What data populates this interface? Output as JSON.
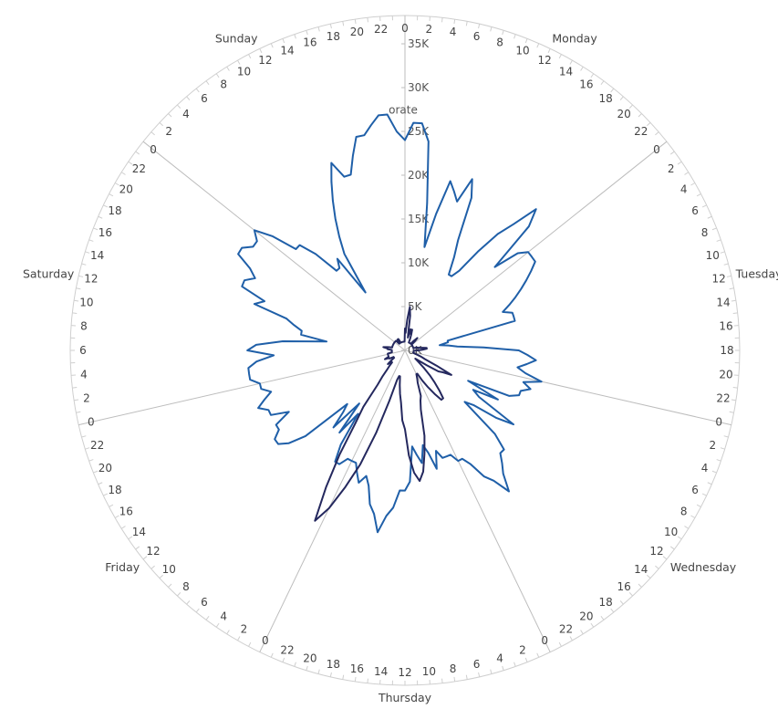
{
  "chart_data": {
    "type": "polar-line",
    "title": "",
    "radial_axis": {
      "label": "orate",
      "min": 0,
      "max": 35000,
      "ticks": [
        0,
        5000,
        10000,
        15000,
        20000,
        25000,
        30000,
        35000
      ],
      "tick_labels": [
        "0K",
        "5K",
        "10K",
        "15K",
        "20K",
        "25K",
        "30K",
        "35K"
      ]
    },
    "angular_axis": {
      "categories": [
        "Monday",
        "Tuesday",
        "Wednesday",
        "Thursday",
        "Friday",
        "Saturday",
        "Sunday"
      ],
      "hour_labels": [
        "0",
        "2",
        "4",
        "6",
        "8",
        "10",
        "12",
        "14",
        "16",
        "18",
        "20",
        "22"
      ],
      "direction": "clockwise",
      "start": "top"
    },
    "series": [
      {
        "color": "#1f5fa8",
        "values": [
          24000,
          26000,
          26000,
          24000,
          17000,
          12000,
          16000,
          20000,
          19000,
          18000,
          21000,
          19000,
          14000,
          12000,
          10000,
          10000,
          11000,
          14000,
          17000,
          19000,
          22000,
          20000,
          14000,
          17000,
          18000,
          18000,
          18000,
          17000,
          16000,
          15000,
          14000,
          13000,
          12000,
          13000,
          13000,
          13000,
          5000,
          5000,
          4000,
          5000,
          6000,
          9000,
          13000,
          14000,
          15000,
          14000,
          13000,
          14000,
          16000,
          14000,
          15000,
          14000,
          14000,
          13000,
          8000,
          12000,
          9000,
          10000,
          15000,
          13000,
          10000,
          9000,
          14000,
          16000,
          16000,
          17000,
          18000,
          20000,
          18000,
          17000,
          15000,
          14000,
          14000,
          13000,
          13000,
          13000,
          12000,
          14000,
          12000,
          11000,
          13000,
          12000,
          11000,
          15000,
          16000,
          16000,
          18000,
          19000,
          21000,
          19000,
          18000,
          16000,
          15000,
          16000,
          15000,
          14000,
          14000,
          14000,
          15000,
          15000,
          13000,
          9000,
          12000,
          8000,
          12000,
          10000,
          9000,
          15000,
          17000,
          18000,
          18000,
          17000,
          17000,
          15000,
          17000,
          17000,
          18000,
          17000,
          16000,
          17000,
          17000,
          18000,
          18000,
          18000,
          17000,
          15000,
          18000,
          17000,
          14000,
          9000,
          12000,
          12000,
          13000,
          14000,
          18000,
          17000,
          20000,
          20000,
          19000,
          20000,
          22000,
          22000,
          21000,
          21000,
          22000,
          20000,
          17000,
          17000,
          15000,
          12000,
          12000,
          13000,
          8000,
          13000,
          15000,
          17000,
          19000,
          21000,
          23000,
          21000,
          21000,
          23000,
          25000,
          25000,
          26000,
          27000,
          27000,
          25000
        ]
      },
      {
        "color": "#24285e",
        "values": [
          2500,
          2000,
          3500,
          5000,
          4000,
          2000,
          1500,
          2500,
          2000,
          2500,
          2000,
          1500,
          1000,
          1000,
          1000,
          1000,
          1000,
          1000,
          1000,
          1000,
          1500,
          2000,
          1500,
          1000,
          1000,
          1000,
          1000,
          1000,
          1000,
          1000,
          1000,
          1000,
          1000,
          1000,
          1000,
          1000,
          1500,
          1500,
          2000,
          2500,
          2500,
          2000,
          1500,
          1000,
          1000,
          1000,
          1000,
          1000,
          1000,
          1000,
          1000,
          1500,
          2000,
          2500,
          4000,
          6000,
          5000,
          4500,
          3000,
          2000,
          1500,
          2000,
          3000,
          4000,
          5000,
          6000,
          7000,
          7000,
          6000,
          5000,
          4000,
          3000,
          3000,
          3500,
          4000,
          5500,
          6000,
          7000,
          10000,
          12000,
          14000,
          15000,
          14000,
          12000,
          9000,
          8000,
          6000,
          5000,
          4000,
          3000,
          3000,
          3500,
          6000,
          10000,
          14000,
          17000,
          20000,
          22000,
          18000,
          14000,
          10000,
          8000,
          5000,
          4000,
          3000,
          2500,
          2000,
          2000,
          2500,
          2000,
          1500,
          1500,
          1500,
          2000,
          2000,
          2500,
          2000,
          2000,
          2000,
          2000,
          2000,
          2000,
          1500,
          1500,
          1500,
          1500,
          1500,
          1500,
          2000,
          2000,
          2500,
          2000,
          1500,
          1500,
          1500,
          1500,
          1500,
          1500,
          1500,
          1500,
          1500,
          1500,
          1500,
          1500,
          1500,
          1500,
          1500,
          1500,
          1500,
          1000,
          1000,
          1000,
          1500,
          1500,
          1500,
          1000,
          1000,
          1000,
          1000,
          1000,
          1000,
          1000,
          1000,
          1000,
          1000,
          1000,
          1000,
          1000
        ]
      }
    ]
  }
}
